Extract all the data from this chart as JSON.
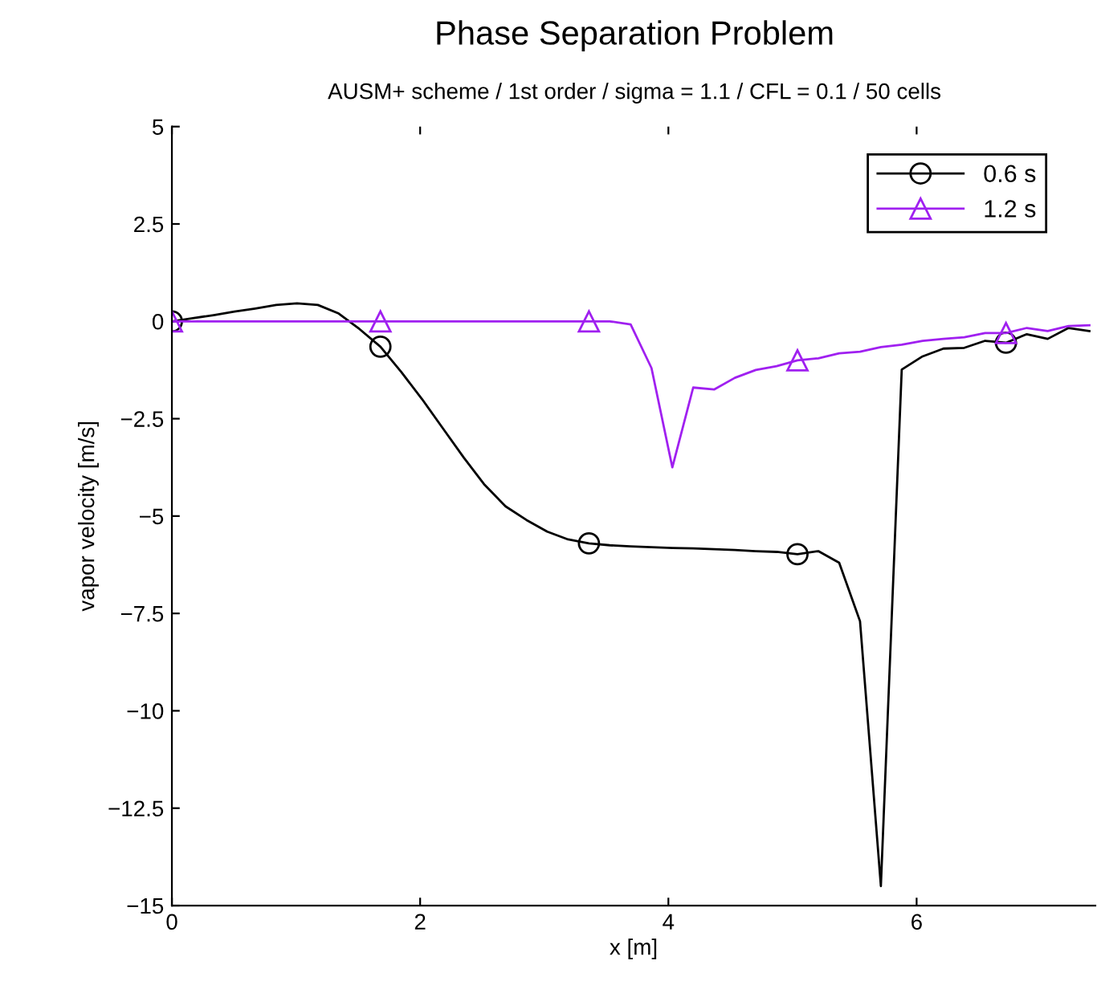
{
  "chart_data": {
    "type": "line",
    "title": "Phase Separation Problem",
    "subtitle": "AUSM+ scheme / 1st order / sigma = 1.1 / CFL = 0.1 / 50 cells",
    "xlabel": "x [m]",
    "ylabel": "vapor velocity [m/s]",
    "x": [
      0,
      0.168,
      0.336,
      0.504,
      0.672,
      0.84,
      1.008,
      1.176,
      1.344,
      1.512,
      1.68,
      1.848,
      2.016,
      2.184,
      2.352,
      2.52,
      2.688,
      2.856,
      3.024,
      3.192,
      3.36,
      3.528,
      3.696,
      3.864,
      4.032,
      4.2,
      4.368,
      4.536,
      4.704,
      4.872,
      5.04,
      5.208,
      5.376,
      5.544,
      5.712,
      5.88,
      6.048,
      6.216,
      6.384,
      6.552,
      6.72,
      6.888,
      7.056,
      7.224,
      7.392
    ],
    "series": [
      {
        "name": "0.6 s",
        "color": "#000000",
        "marker": "none",
        "values": [
          0.0,
          0.08,
          0.16,
          0.25,
          0.33,
          0.42,
          0.46,
          0.42,
          0.2,
          -0.2,
          -0.65,
          -1.3,
          -2.0,
          -2.75,
          -3.5,
          -4.2,
          -4.75,
          -5.1,
          -5.4,
          -5.6,
          -5.7,
          -5.75,
          -5.78,
          -5.8,
          -5.82,
          -5.83,
          -5.85,
          -5.87,
          -5.9,
          -5.92,
          -5.98,
          -5.9,
          -6.2,
          -7.7,
          -14.5,
          -1.24,
          -0.9,
          -0.7,
          -0.68,
          -0.5,
          -0.55,
          -0.33,
          -0.45,
          -0.17,
          -0.25
        ]
      },
      {
        "type": "scatter",
        "color": "#000000",
        "marker": "circle",
        "x": [
          0,
          1.68,
          3.36,
          5.04,
          6.72
        ],
        "values": [
          0.0,
          -0.65,
          -5.7,
          -5.98,
          -0.55
        ]
      },
      {
        "name": "1.2 s",
        "color": "#a020f0",
        "marker": "none",
        "values": [
          0.0,
          0.0,
          0.0,
          0.0,
          0.0,
          0.0,
          0.0,
          0.0,
          0.0,
          0.0,
          0.0,
          0.0,
          0.0,
          0.0,
          0.0,
          0.0,
          0.0,
          0.0,
          0.0,
          0.0,
          0.0,
          0.0,
          -0.08,
          -1.2,
          -3.75,
          -1.7,
          -1.75,
          -1.45,
          -1.25,
          -1.15,
          -1.0,
          -0.95,
          -0.82,
          -0.78,
          -0.66,
          -0.6,
          -0.5,
          -0.45,
          -0.41,
          -0.3,
          -0.3,
          -0.17,
          -0.25,
          -0.12,
          -0.1
        ]
      },
      {
        "type": "scatter",
        "color": "#a020f0",
        "marker": "triangle",
        "x": [
          0,
          1.68,
          3.36,
          5.04,
          6.72
        ],
        "values": [
          0.0,
          0.0,
          0.0,
          -1.0,
          -0.3
        ]
      }
    ],
    "xlim": [
      0,
      7.44
    ],
    "ylim": [
      -15,
      5
    ],
    "xticks": [
      0,
      2,
      4,
      6
    ],
    "yticks": [
      {
        "value": -15,
        "label": "−15"
      },
      {
        "value": -12.5,
        "label": "−12.5"
      },
      {
        "value": -10,
        "label": "−10"
      },
      {
        "value": -7.5,
        "label": "−7.5"
      },
      {
        "value": -5,
        "label": "−5"
      },
      {
        "value": -2.5,
        "label": "−2.5"
      },
      0,
      2.5,
      5
    ],
    "grid": false,
    "legend": "top right",
    "line_style": "solid"
  }
}
